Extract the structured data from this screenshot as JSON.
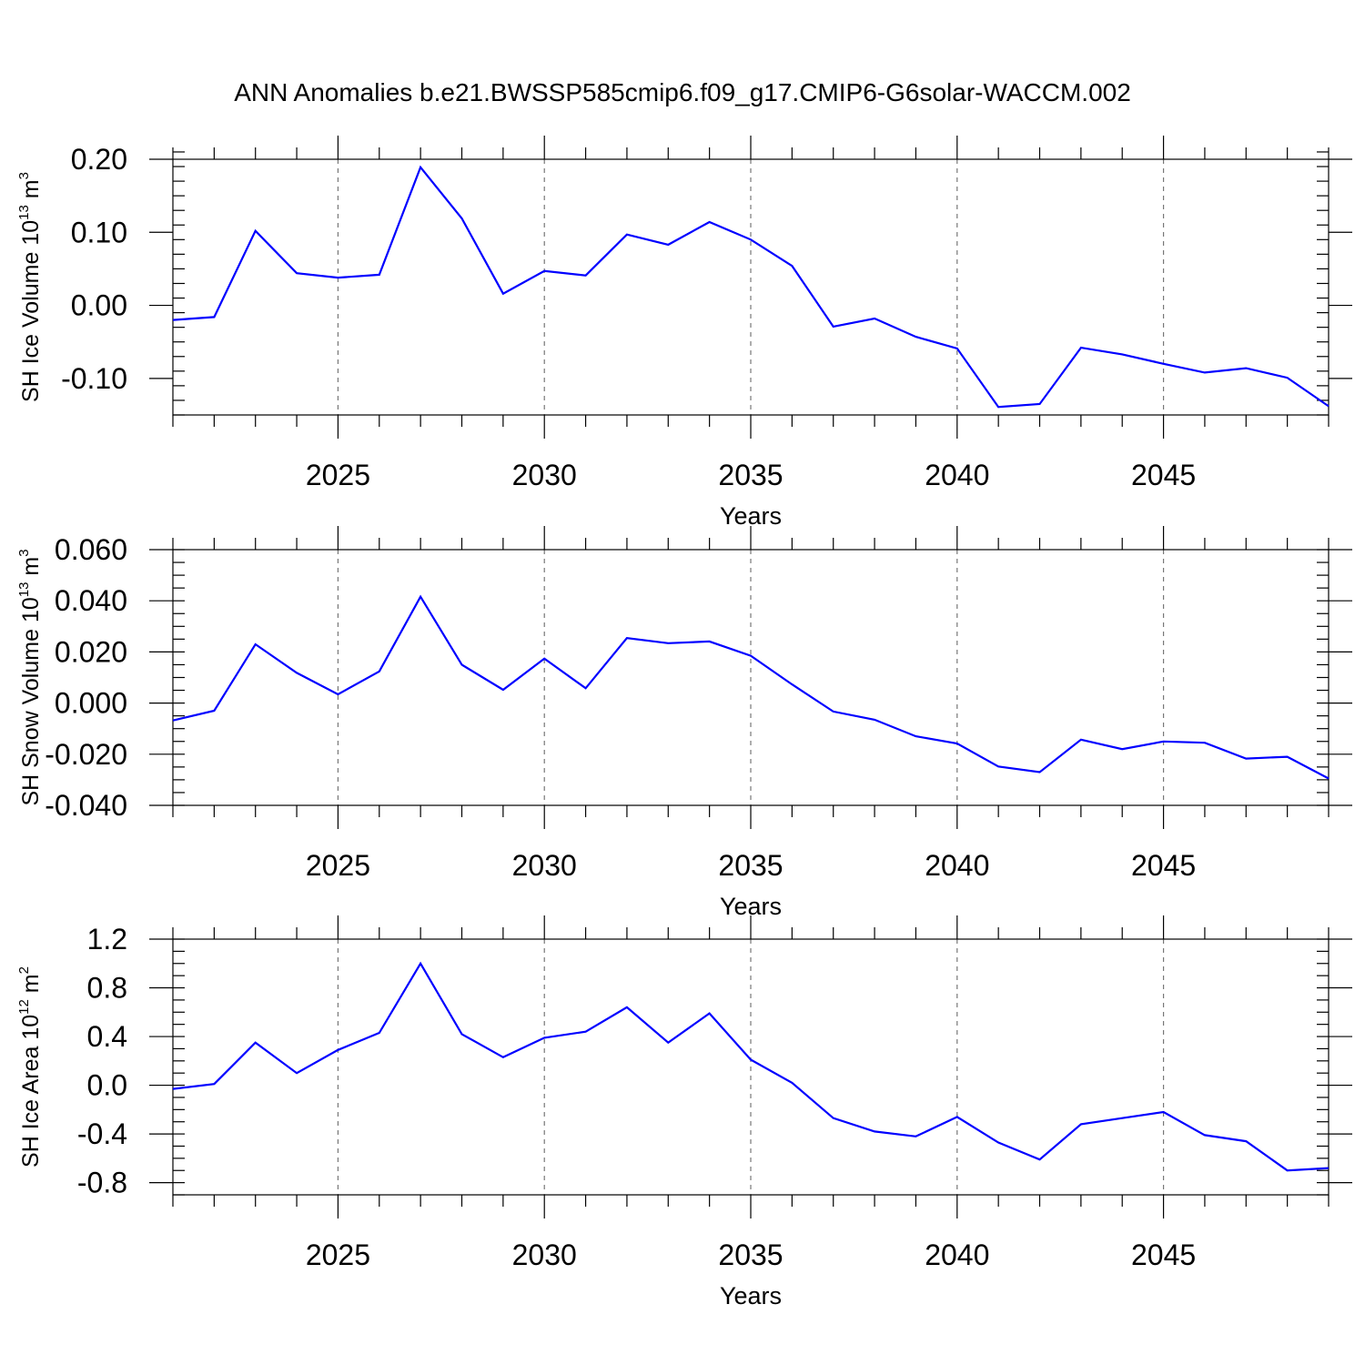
{
  "title": "ANN Anomalies b.e21.BWSSP585cmip6.f09_g17.CMIP6-G6solar-WACCM.002",
  "chart_data": [
    {
      "type": "line",
      "title": "ANN Anomalies b.e21.BWSSP585cmip6.f09_g17.CMIP6-G6solar-WACCM.002",
      "xlabel": "Years",
      "ylabel": {
        "main": "SH Ice Volume 10",
        "exp": "13",
        "unit": " m",
        "unit_exp": "3"
      },
      "xlim": [
        2021,
        2049
      ],
      "ylim": [
        -0.15,
        0.2
      ],
      "grid_x": true,
      "xticks": [
        2025,
        2030,
        2035,
        2040,
        2045
      ],
      "yticks": [
        -0.1,
        0.0,
        0.1,
        0.2
      ],
      "ytick_labels": [
        "-0.10",
        "0.00",
        "0.10",
        "0.20"
      ],
      "y_minor_step": 0.02,
      "color": "#0000ff",
      "x": [
        2021,
        2022,
        2023,
        2024,
        2025,
        2026,
        2027,
        2028,
        2029,
        2030,
        2031,
        2032,
        2033,
        2034,
        2035,
        2036,
        2037,
        2038,
        2039,
        2040,
        2041,
        2042,
        2043,
        2044,
        2045,
        2046,
        2047,
        2048,
        2049
      ],
      "values": [
        -0.02,
        -0.016,
        0.102,
        0.044,
        0.038,
        0.042,
        0.189,
        0.119,
        0.016,
        0.047,
        0.041,
        0.097,
        0.083,
        0.114,
        0.09,
        0.054,
        -0.029,
        -0.018,
        -0.043,
        -0.059,
        -0.139,
        -0.135,
        -0.058,
        -0.067,
        -0.08,
        -0.092,
        -0.086,
        -0.099,
        -0.138
      ]
    },
    {
      "type": "line",
      "xlabel": "Years",
      "ylabel": {
        "main": "SH Snow Volume 10",
        "exp": "13",
        "unit": " m",
        "unit_exp": "3"
      },
      "xlim": [
        2021,
        2049
      ],
      "ylim": [
        -0.04,
        0.06
      ],
      "grid_x": true,
      "xticks": [
        2025,
        2030,
        2035,
        2040,
        2045
      ],
      "yticks": [
        -0.04,
        -0.02,
        0.0,
        0.02,
        0.04,
        0.06
      ],
      "ytick_labels": [
        "-0.040",
        "-0.020",
        "0.000",
        "0.020",
        "0.040",
        "0.060"
      ],
      "y_minor_step": 0.005,
      "color": "#0000ff",
      "x": [
        2021,
        2022,
        2023,
        2024,
        2025,
        2026,
        2027,
        2028,
        2029,
        2030,
        2031,
        2032,
        2033,
        2034,
        2035,
        2036,
        2037,
        2038,
        2039,
        2040,
        2041,
        2042,
        2043,
        2044,
        2045,
        2046,
        2047,
        2048,
        2049
      ],
      "values": [
        -0.0068,
        -0.003,
        0.023,
        0.0118,
        0.0034,
        0.0124,
        0.0416,
        0.015,
        0.0052,
        0.0174,
        0.0058,
        0.0254,
        0.0234,
        0.0241,
        0.0185,
        0.0073,
        -0.0033,
        -0.0065,
        -0.013,
        -0.0158,
        -0.0248,
        -0.027,
        -0.0143,
        -0.018,
        -0.015,
        -0.0155,
        -0.0217,
        -0.021,
        -0.0295
      ]
    },
    {
      "type": "line",
      "xlabel": "Years",
      "ylabel": {
        "main": "SH Ice Area 10",
        "exp": "12",
        "unit": " m",
        "unit_exp": "2"
      },
      "xlim": [
        2021,
        2049
      ],
      "ylim": [
        -0.9,
        1.2
      ],
      "grid_x": true,
      "xticks": [
        2025,
        2030,
        2035,
        2040,
        2045
      ],
      "yticks": [
        -0.8,
        -0.4,
        0.0,
        0.4,
        0.8,
        1.2
      ],
      "ytick_labels": [
        "-0.8",
        "-0.4",
        "0.0",
        "0.4",
        "0.8",
        "1.2"
      ],
      "y_minor_step": 0.1,
      "color": "#0000ff",
      "x": [
        2021,
        2022,
        2023,
        2024,
        2025,
        2026,
        2027,
        2028,
        2029,
        2030,
        2031,
        2032,
        2033,
        2034,
        2035,
        2036,
        2037,
        2038,
        2039,
        2040,
        2041,
        2042,
        2043,
        2044,
        2045,
        2046,
        2047,
        2048,
        2049
      ],
      "values": [
        -0.03,
        0.01,
        0.35,
        0.1,
        0.29,
        0.43,
        1.0,
        0.42,
        0.23,
        0.39,
        0.44,
        0.64,
        0.35,
        0.59,
        0.21,
        0.02,
        -0.27,
        -0.38,
        -0.42,
        -0.26,
        -0.47,
        -0.61,
        -0.32,
        -0.27,
        -0.22,
        -0.41,
        -0.46,
        -0.7,
        -0.68
      ]
    }
  ]
}
